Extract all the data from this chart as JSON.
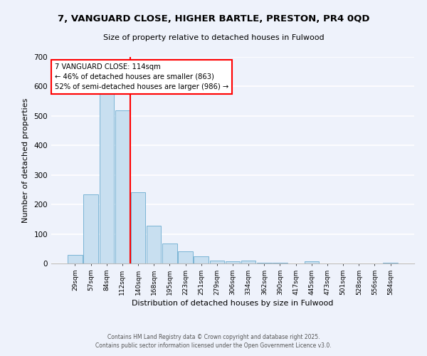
{
  "title": "7, VANGUARD CLOSE, HIGHER BARTLE, PRESTON, PR4 0QD",
  "subtitle": "Size of property relative to detached houses in Fulwood",
  "xlabel": "Distribution of detached houses by size in Fulwood",
  "ylabel": "Number of detached properties",
  "bar_color": "#c8dff0",
  "bar_edge_color": "#7ab4d4",
  "background_color": "#eef2fb",
  "grid_color": "white",
  "categories": [
    "29sqm",
    "57sqm",
    "84sqm",
    "112sqm",
    "140sqm",
    "168sqm",
    "195sqm",
    "223sqm",
    "251sqm",
    "279sqm",
    "306sqm",
    "334sqm",
    "362sqm",
    "390sqm",
    "417sqm",
    "445sqm",
    "473sqm",
    "501sqm",
    "528sqm",
    "556sqm",
    "584sqm"
  ],
  "values": [
    28,
    234,
    580,
    518,
    242,
    128,
    68,
    40,
    25,
    10,
    8,
    10,
    2,
    3,
    1,
    8,
    1,
    0,
    0,
    0,
    3
  ],
  "vline_x": 3,
  "vline_color": "red",
  "annotation_line1": "7 VANGUARD CLOSE: 114sqm",
  "annotation_line2": "← 46% of detached houses are smaller (863)",
  "annotation_line3": "52% of semi-detached houses are larger (986) →",
  "annotation_box_color": "white",
  "annotation_box_edge": "red",
  "ylim": [
    0,
    700
  ],
  "yticks": [
    0,
    100,
    200,
    300,
    400,
    500,
    600,
    700
  ],
  "footer1": "Contains HM Land Registry data © Crown copyright and database right 2025.",
  "footer2": "Contains public sector information licensed under the Open Government Licence v3.0."
}
